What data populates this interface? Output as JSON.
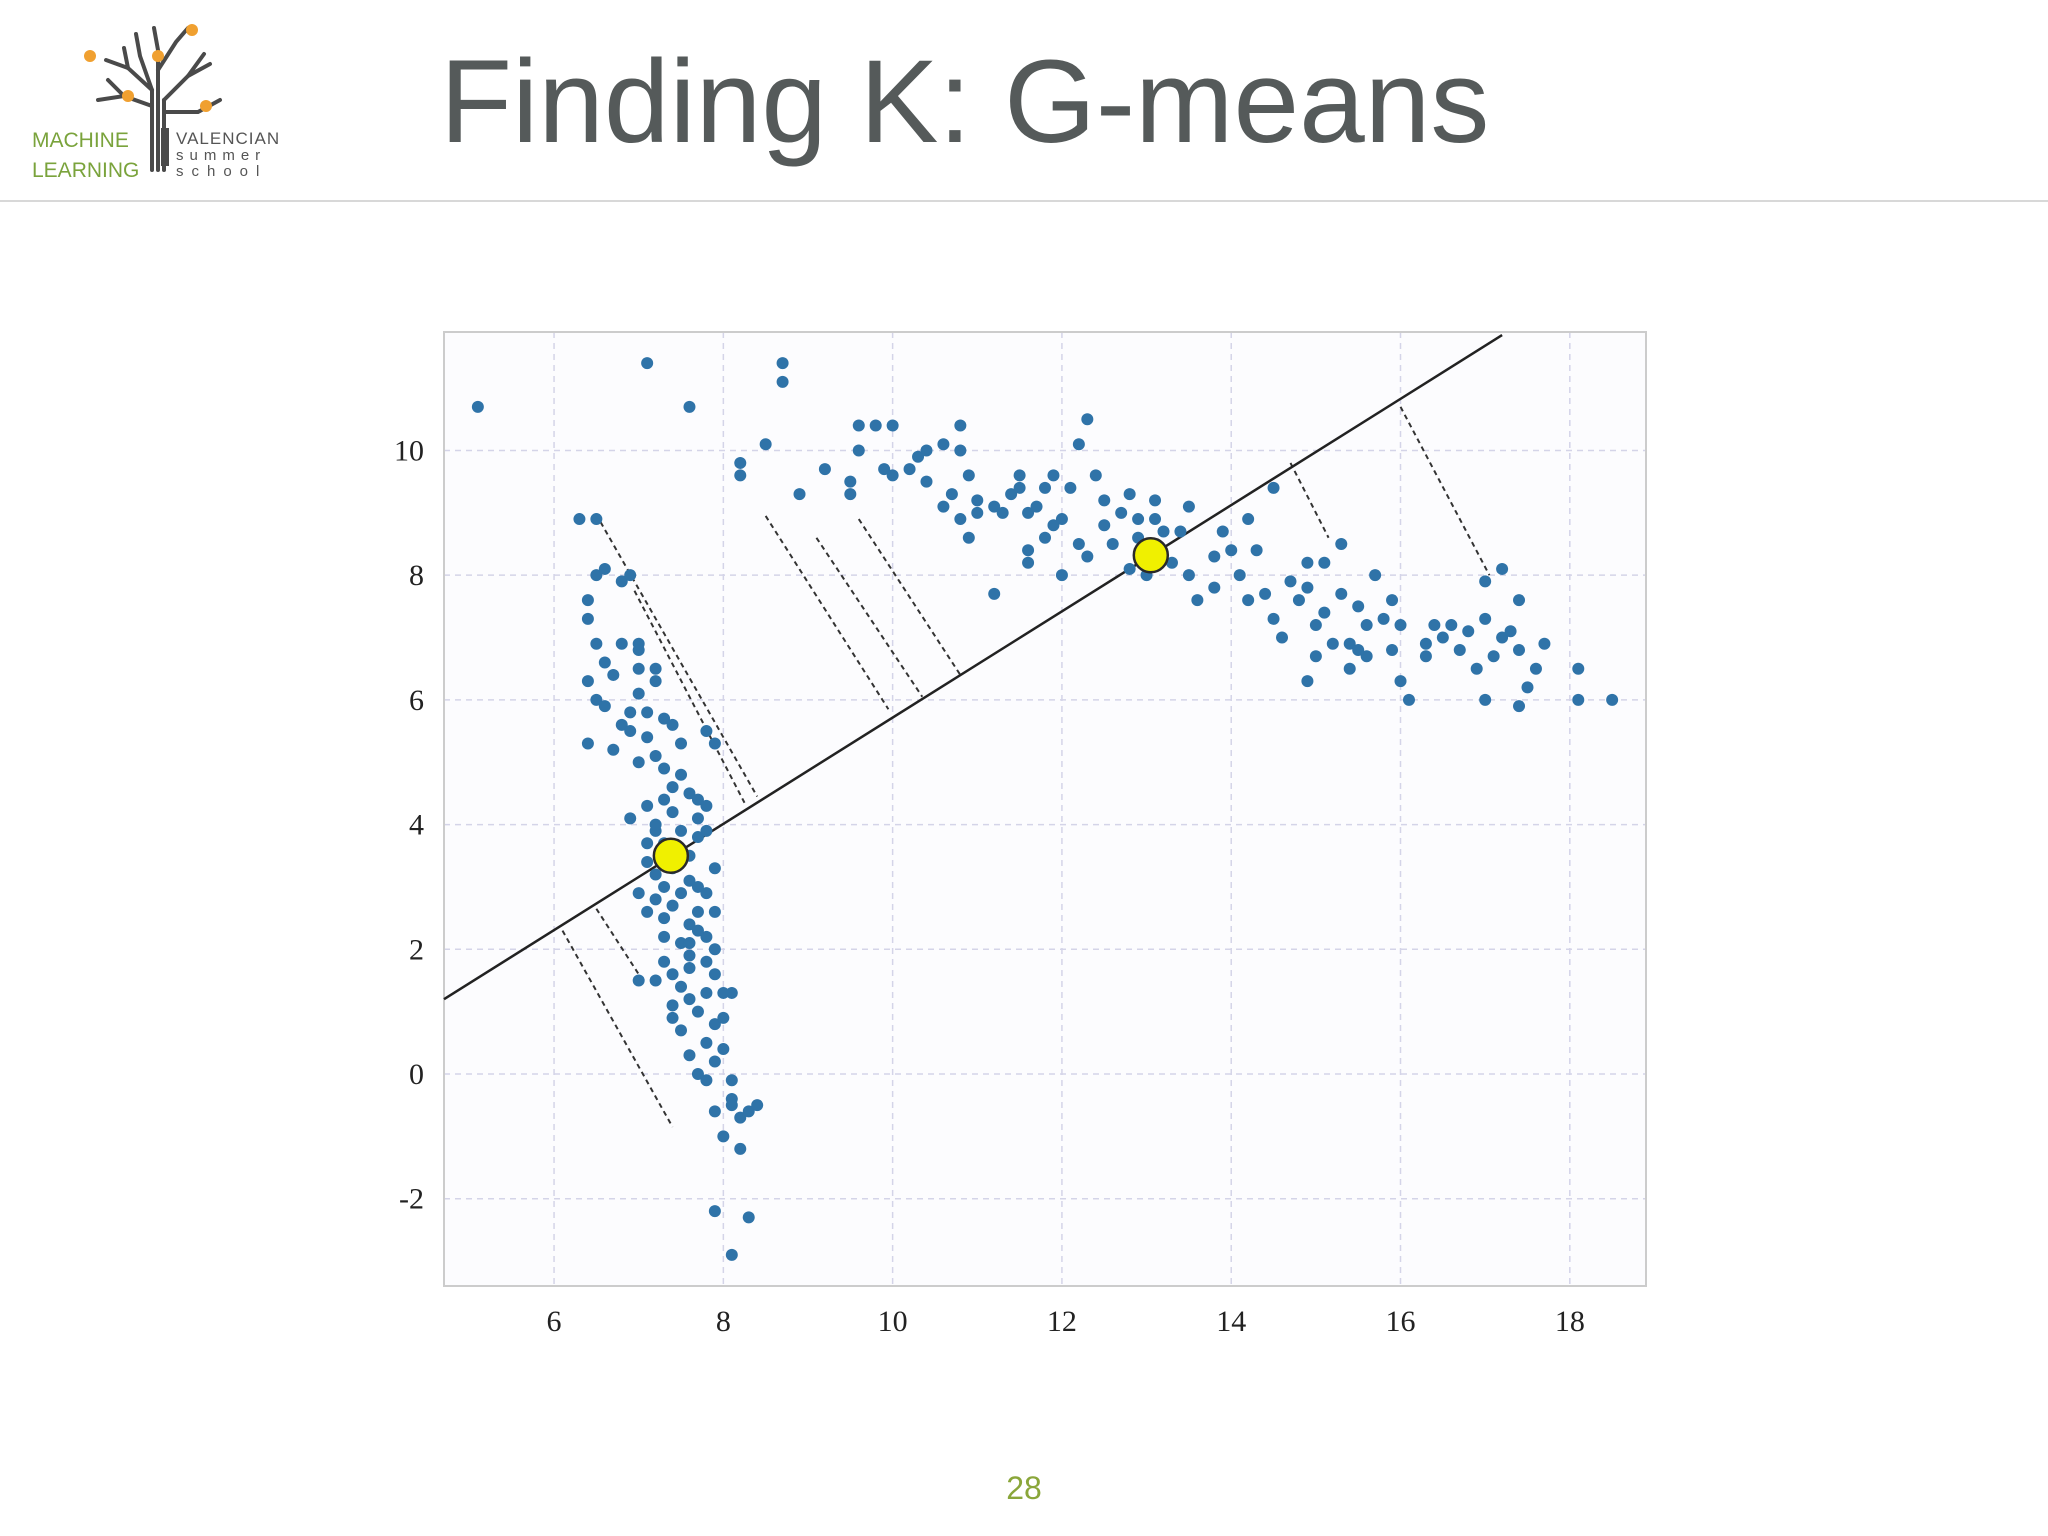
{
  "slide": {
    "title": "Finding K: G-means",
    "page_number": "28"
  },
  "logo": {
    "line1": "MACHINE",
    "line2": "LEARNING",
    "line3": "VALENCIAN",
    "line4": "summer",
    "line5": "school",
    "colors": {
      "green": "#7aa33c",
      "orange": "#f0a030",
      "gray": "#555555"
    }
  },
  "colors": {
    "points": "#2f73a8",
    "centers_fill": "#f0f000",
    "centers_stroke": "#2a2a2a",
    "line": "#222222",
    "grid": "#d4d4e8",
    "frame": "#cccccc"
  },
  "chart_data": {
    "type": "scatter",
    "title": "",
    "xlabel": "",
    "ylabel": "",
    "xlim": [
      4.7,
      18.9
    ],
    "ylim": [
      -3.4,
      11.9
    ],
    "xticks": [
      6,
      8,
      10,
      12,
      14,
      16,
      18
    ],
    "yticks": [
      -2,
      0,
      2,
      4,
      6,
      8,
      10
    ],
    "grid": true,
    "series": [
      {
        "points": [
          [
            5.1,
            10.7
          ],
          [
            7.1,
            11.4
          ],
          [
            7.6,
            10.7
          ],
          [
            8.7,
            11.4
          ],
          [
            8.7,
            11.1
          ],
          [
            8.2,
            9.6
          ],
          [
            8.2,
            9.8
          ],
          [
            8.5,
            10.1
          ],
          [
            8.9,
            9.3
          ],
          [
            9.2,
            9.7
          ],
          [
            9.5,
            9.3
          ],
          [
            9.5,
            9.5
          ],
          [
            9.6,
            10.4
          ],
          [
            9.8,
            10.4
          ],
          [
            9.6,
            10.0
          ],
          [
            9.9,
            9.7
          ],
          [
            10.0,
            9.6
          ],
          [
            10.0,
            10.4
          ],
          [
            10.2,
            9.7
          ],
          [
            10.3,
            9.9
          ],
          [
            10.4,
            9.5
          ],
          [
            10.4,
            10.0
          ],
          [
            10.6,
            10.1
          ],
          [
            10.6,
            9.1
          ],
          [
            10.8,
            10.0
          ],
          [
            10.8,
            10.4
          ],
          [
            10.9,
            9.6
          ],
          [
            10.7,
            9.3
          ],
          [
            10.8,
            8.9
          ],
          [
            11.0,
            9.2
          ],
          [
            11.0,
            9.0
          ],
          [
            11.2,
            9.1
          ],
          [
            11.3,
            9.0
          ],
          [
            11.4,
            9.3
          ],
          [
            11.5,
            9.4
          ],
          [
            11.5,
            9.6
          ],
          [
            11.6,
            9.0
          ],
          [
            11.7,
            9.1
          ],
          [
            11.8,
            9.4
          ],
          [
            11.9,
            9.6
          ],
          [
            11.9,
            8.8
          ],
          [
            11.6,
            8.4
          ],
          [
            11.8,
            8.6
          ],
          [
            12.0,
            8.9
          ],
          [
            12.1,
            9.4
          ],
          [
            12.2,
            10.1
          ],
          [
            12.3,
            10.5
          ],
          [
            12.4,
            9.6
          ],
          [
            12.5,
            9.2
          ],
          [
            12.5,
            8.8
          ],
          [
            12.3,
            8.3
          ],
          [
            12.2,
            8.5
          ],
          [
            12.6,
            8.5
          ],
          [
            12.7,
            9.0
          ],
          [
            12.8,
            9.3
          ],
          [
            12.9,
            8.9
          ],
          [
            12.8,
            8.1
          ],
          [
            12.9,
            8.6
          ],
          [
            13.0,
            8.0
          ],
          [
            13.1,
            8.9
          ],
          [
            13.2,
            8.7
          ],
          [
            13.1,
            9.2
          ],
          [
            13.3,
            8.2
          ],
          [
            13.4,
            8.7
          ],
          [
            13.5,
            9.1
          ],
          [
            13.5,
            8.0
          ],
          [
            13.6,
            7.6
          ],
          [
            13.8,
            8.3
          ],
          [
            13.8,
            7.8
          ],
          [
            13.9,
            8.7
          ],
          [
            14.0,
            8.4
          ],
          [
            14.1,
            8.0
          ],
          [
            14.2,
            7.6
          ],
          [
            14.2,
            8.9
          ],
          [
            14.3,
            8.4
          ],
          [
            14.4,
            7.7
          ],
          [
            14.5,
            9.4
          ],
          [
            14.5,
            7.3
          ],
          [
            14.6,
            7.0
          ],
          [
            14.7,
            7.9
          ],
          [
            14.8,
            7.6
          ],
          [
            14.9,
            7.8
          ],
          [
            14.9,
            8.2
          ],
          [
            14.9,
            6.3
          ],
          [
            15.0,
            7.2
          ],
          [
            15.0,
            6.7
          ],
          [
            15.1,
            7.4
          ],
          [
            15.1,
            8.2
          ],
          [
            15.2,
            6.9
          ],
          [
            15.3,
            7.7
          ],
          [
            15.3,
            8.5
          ],
          [
            15.4,
            6.9
          ],
          [
            15.4,
            6.5
          ],
          [
            15.5,
            7.5
          ],
          [
            15.6,
            7.2
          ],
          [
            15.6,
            6.7
          ],
          [
            15.7,
            8.0
          ],
          [
            15.8,
            7.3
          ],
          [
            15.9,
            6.8
          ],
          [
            15.9,
            7.6
          ],
          [
            16.0,
            7.2
          ],
          [
            16.0,
            6.3
          ],
          [
            16.1,
            6.0
          ],
          [
            16.3,
            6.9
          ],
          [
            16.4,
            7.2
          ],
          [
            16.5,
            7.0
          ],
          [
            16.6,
            7.2
          ],
          [
            16.7,
            6.8
          ],
          [
            16.8,
            7.1
          ],
          [
            16.9,
            6.5
          ],
          [
            17.0,
            6.0
          ],
          [
            17.0,
            7.3
          ],
          [
            17.1,
            6.7
          ],
          [
            17.2,
            7.0
          ],
          [
            17.3,
            7.1
          ],
          [
            17.4,
            6.8
          ],
          [
            17.4,
            5.9
          ],
          [
            17.5,
            6.2
          ],
          [
            17.6,
            6.5
          ],
          [
            17.7,
            6.9
          ],
          [
            18.1,
            6.0
          ],
          [
            18.1,
            6.5
          ],
          [
            18.5,
            6.0
          ],
          [
            11.2,
            7.7
          ],
          [
            11.6,
            8.2
          ],
          [
            12.0,
            8.0
          ],
          [
            10.9,
            8.6
          ],
          [
            17.4,
            7.6
          ],
          [
            17.2,
            8.1
          ],
          [
            17.0,
            7.9
          ],
          [
            16.3,
            6.7
          ],
          [
            15.5,
            6.8
          ],
          [
            6.3,
            8.9
          ],
          [
            6.5,
            8.9
          ],
          [
            6.5,
            8.0
          ],
          [
            6.6,
            8.1
          ],
          [
            6.4,
            7.6
          ],
          [
            6.8,
            7.9
          ],
          [
            6.9,
            8.0
          ],
          [
            6.4,
            7.3
          ],
          [
            6.5,
            6.9
          ],
          [
            6.4,
            6.3
          ],
          [
            6.6,
            6.6
          ],
          [
            6.7,
            6.4
          ],
          [
            6.8,
            6.9
          ],
          [
            7.0,
            6.5
          ],
          [
            7.0,
            6.9
          ],
          [
            6.5,
            6.0
          ],
          [
            6.6,
            5.9
          ],
          [
            6.8,
            5.6
          ],
          [
            6.9,
            5.8
          ],
          [
            7.0,
            6.1
          ],
          [
            7.1,
            5.4
          ],
          [
            7.2,
            5.1
          ],
          [
            7.2,
            6.3
          ],
          [
            7.3,
            5.7
          ],
          [
            7.3,
            4.9
          ],
          [
            7.4,
            4.6
          ],
          [
            7.5,
            5.3
          ],
          [
            7.4,
            4.2
          ],
          [
            7.5,
            3.9
          ],
          [
            7.6,
            4.5
          ],
          [
            7.7,
            4.1
          ],
          [
            7.6,
            3.5
          ],
          [
            7.7,
            3.8
          ],
          [
            7.8,
            4.3
          ],
          [
            7.8,
            5.5
          ],
          [
            7.9,
            5.3
          ],
          [
            6.9,
            4.1
          ],
          [
            7.1,
            4.3
          ],
          [
            7.2,
            3.9
          ],
          [
            7.1,
            3.7
          ],
          [
            7.2,
            3.2
          ],
          [
            7.3,
            3.0
          ],
          [
            7.4,
            2.7
          ],
          [
            7.5,
            2.9
          ],
          [
            7.6,
            3.1
          ],
          [
            7.6,
            2.4
          ],
          [
            7.7,
            2.6
          ],
          [
            7.8,
            2.2
          ],
          [
            7.9,
            2.0
          ],
          [
            7.3,
            2.2
          ],
          [
            7.3,
            1.8
          ],
          [
            7.4,
            1.6
          ],
          [
            7.5,
            1.4
          ],
          [
            7.6,
            1.7
          ],
          [
            7.6,
            1.2
          ],
          [
            7.7,
            1.0
          ],
          [
            7.8,
            1.3
          ],
          [
            7.9,
            0.8
          ],
          [
            7.8,
            0.5
          ],
          [
            7.9,
            0.2
          ],
          [
            8.0,
            0.4
          ],
          [
            8.1,
            -0.1
          ],
          [
            8.1,
            -0.4
          ],
          [
            8.2,
            -0.7
          ],
          [
            8.2,
            -1.2
          ],
          [
            8.3,
            -0.6
          ],
          [
            8.4,
            -0.5
          ],
          [
            8.1,
            1.3
          ],
          [
            8.0,
            0.9
          ],
          [
            7.5,
            2.1
          ],
          [
            7.6,
            1.9
          ],
          [
            7.7,
            2.3
          ],
          [
            7.8,
            1.8
          ],
          [
            7.9,
            1.6
          ],
          [
            8.0,
            1.3
          ],
          [
            7.9,
            -0.6
          ],
          [
            8.0,
            -1.0
          ],
          [
            7.9,
            -2.2
          ],
          [
            8.3,
            -2.3
          ],
          [
            8.1,
            -2.9
          ],
          [
            7.0,
            1.5
          ],
          [
            7.2,
            1.5
          ],
          [
            7.4,
            0.9
          ],
          [
            7.5,
            0.7
          ],
          [
            7.4,
            1.1
          ],
          [
            7.3,
            2.5
          ],
          [
            7.0,
            2.9
          ],
          [
            7.1,
            3.4
          ],
          [
            7.2,
            4.0
          ],
          [
            7.3,
            4.4
          ],
          [
            7.0,
            5.0
          ],
          [
            6.9,
            5.5
          ],
          [
            7.1,
            5.8
          ],
          [
            6.4,
            5.3
          ],
          [
            6.7,
            5.2
          ],
          [
            7.2,
            6.5
          ],
          [
            7.0,
            6.8
          ],
          [
            7.4,
            5.6
          ],
          [
            7.5,
            4.8
          ],
          [
            7.7,
            4.4
          ],
          [
            7.8,
            3.9
          ],
          [
            7.9,
            3.3
          ],
          [
            7.8,
            2.9
          ],
          [
            7.9,
            2.6
          ],
          [
            7.7,
            3.0
          ],
          [
            7.6,
            2.1
          ],
          [
            7.5,
            3.6
          ],
          [
            7.4,
            3.3
          ],
          [
            7.3,
            3.7
          ],
          [
            7.2,
            2.8
          ],
          [
            7.1,
            2.6
          ],
          [
            7.6,
            0.3
          ],
          [
            7.8,
            -0.1
          ],
          [
            7.7,
            0.0
          ],
          [
            8.1,
            -0.5
          ]
        ]
      }
    ],
    "centers": [
      [
        7.38,
        3.5
      ],
      [
        13.05,
        8.32
      ]
    ],
    "fitted_line": [
      [
        4.7,
        1.2
      ],
      [
        17.2,
        11.85
      ]
    ],
    "projection_segments": [
      [
        [
          6.55,
          8.85
        ],
        [
          8.4,
          4.45
        ]
      ],
      [
        [
          6.95,
          7.75
        ],
        [
          8.25,
          4.35
        ]
      ],
      [
        [
          8.5,
          8.95
        ],
        [
          9.95,
          5.85
        ]
      ],
      [
        [
          9.1,
          8.6
        ],
        [
          10.35,
          6.05
        ]
      ],
      [
        [
          9.6,
          8.9
        ],
        [
          10.8,
          6.4
        ]
      ],
      [
        [
          14.7,
          9.8
        ],
        [
          15.15,
          8.6
        ]
      ],
      [
        [
          16.0,
          10.7
        ],
        [
          17.05,
          8.0
        ]
      ],
      [
        [
          6.1,
          2.3
        ],
        [
          7.4,
          -0.85
        ]
      ],
      [
        [
          6.5,
          2.65
        ],
        [
          7.0,
          1.6
        ]
      ]
    ]
  }
}
